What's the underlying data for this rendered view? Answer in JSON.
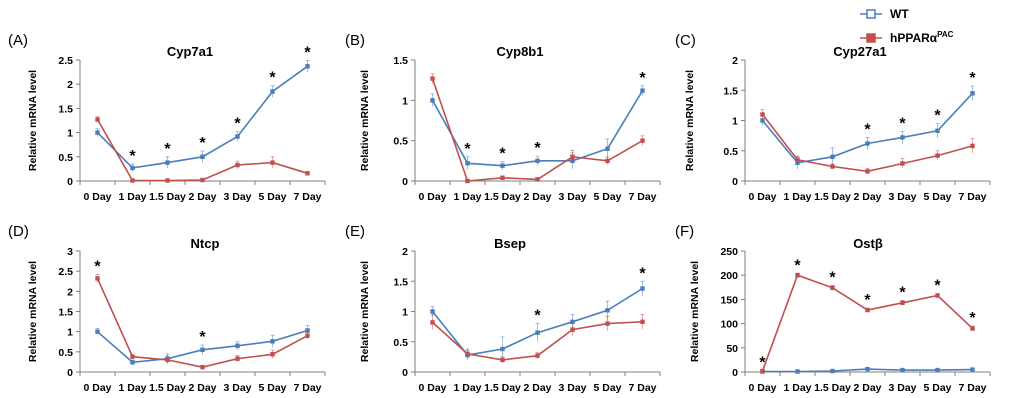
{
  "legend": [
    {
      "name": "WT",
      "color": "#4a7ebb",
      "marker": "square-open"
    },
    {
      "name": "hPPARα",
      "sup": "PAC",
      "color": "#c0504d",
      "marker": "square-filled"
    }
  ],
  "chart_data": [
    {
      "type": "line",
      "panel": "(A)",
      "title": "Cyp7a1",
      "ylabel": "Relative mRNA level",
      "xlabel": "",
      "categories": [
        "0 Day",
        "1 Day",
        "1.5 Day",
        "2 Day",
        "3 Day",
        "5 Day",
        "7 Day"
      ],
      "ylim": [
        0,
        2.5
      ],
      "yticks": [
        "0",
        "0.5",
        "1",
        "1.5",
        "2",
        "2.5"
      ],
      "grid": false,
      "series": [
        {
          "name": "WT",
          "values": [
            1.0,
            0.27,
            0.38,
            0.5,
            0.92,
            1.85,
            2.37
          ],
          "err": [
            0.08,
            0.08,
            0.12,
            0.12,
            0.1,
            0.12,
            0.12
          ]
        },
        {
          "name": "hPPARα",
          "values": [
            1.27,
            0.01,
            0.01,
            0.02,
            0.33,
            0.38,
            0.16
          ],
          "err": [
            0.06,
            0.02,
            0.02,
            0.02,
            0.08,
            0.12,
            0.03
          ]
        }
      ],
      "significant": [
        1,
        2,
        3,
        4,
        5,
        6
      ]
    },
    {
      "type": "line",
      "panel": "(B)",
      "title": "Cyp8b1",
      "ylabel": "Relative mRNA level",
      "xlabel": "",
      "categories": [
        "0 Day",
        "1 Day",
        "1.5 Day",
        "2 Day",
        "3 Day",
        "5 Day",
        "7 Day"
      ],
      "ylim": [
        0,
        1.5
      ],
      "yticks": [
        "0",
        "0.5",
        "1",
        "1.5"
      ],
      "grid": false,
      "series": [
        {
          "name": "WT",
          "values": [
            1.0,
            0.22,
            0.19,
            0.25,
            0.25,
            0.4,
            1.12
          ],
          "err": [
            0.08,
            0.08,
            0.05,
            0.06,
            0.1,
            0.12,
            0.06
          ]
        },
        {
          "name": "hPPARα",
          "values": [
            1.27,
            0.0,
            0.04,
            0.02,
            0.3,
            0.25,
            0.5
          ],
          "err": [
            0.06,
            0.01,
            0.02,
            0.02,
            0.08,
            0.05,
            0.06
          ]
        }
      ],
      "significant": [
        1,
        2,
        3,
        6
      ]
    },
    {
      "type": "line",
      "panel": "(C)",
      "title": "Cyp27a1",
      "ylabel": "Relative mRNA level",
      "xlabel": "",
      "categories": [
        "0 Day",
        "1 Day",
        "1.5 Day",
        "2 Day",
        "3 Day",
        "5 Day",
        "7 Day"
      ],
      "ylim": [
        0,
        2
      ],
      "yticks": [
        "0",
        "0.5",
        "1",
        "1.5",
        "2"
      ],
      "grid": false,
      "series": [
        {
          "name": "WT",
          "values": [
            1.0,
            0.3,
            0.4,
            0.62,
            0.72,
            0.83,
            1.45
          ],
          "err": [
            0.08,
            0.1,
            0.15,
            0.1,
            0.1,
            0.12,
            0.12
          ]
        },
        {
          "name": "hPPARα",
          "values": [
            1.1,
            0.35,
            0.24,
            0.16,
            0.29,
            0.42,
            0.58
          ],
          "err": [
            0.08,
            0.06,
            0.04,
            0.05,
            0.08,
            0.08,
            0.12
          ]
        }
      ],
      "significant": [
        3,
        4,
        5,
        6
      ]
    },
    {
      "type": "line",
      "panel": "(D)",
      "title": "Ntcp",
      "ylabel": "Relative mRNA level",
      "xlabel": "",
      "categories": [
        "0 Day",
        "1 Day",
        "1.5 Day",
        "2 Day",
        "3 Day",
        "5 Day",
        "7 Day"
      ],
      "ylim": [
        0,
        3
      ],
      "yticks": [
        "0",
        "0.5",
        "1",
        "1.5",
        "2",
        "2.5",
        "3"
      ],
      "grid": false,
      "series": [
        {
          "name": "WT",
          "values": [
            1.0,
            0.24,
            0.33,
            0.55,
            0.65,
            0.76,
            1.03
          ],
          "err": [
            0.08,
            0.06,
            0.12,
            0.12,
            0.1,
            0.15,
            0.12
          ]
        },
        {
          "name": "hPPARα",
          "values": [
            2.32,
            0.38,
            0.3,
            0.12,
            0.33,
            0.44,
            0.9
          ],
          "err": [
            0.1,
            0.05,
            0.1,
            0.03,
            0.08,
            0.1,
            0.08
          ]
        }
      ],
      "significant": [
        0,
        3
      ]
    },
    {
      "type": "line",
      "panel": "(E)",
      "title": "Bsep",
      "ylabel": "Relative mRNA level",
      "xlabel": "",
      "categories": [
        "0 Day",
        "1 Day",
        "1.5 Day",
        "2 Day",
        "3 Day",
        "5 Day",
        "7 Day"
      ],
      "ylim": [
        0,
        2
      ],
      "yticks": [
        "0",
        "0.5",
        "1",
        "1.5",
        "2"
      ],
      "grid": false,
      "series": [
        {
          "name": "WT",
          "values": [
            1.0,
            0.28,
            0.38,
            0.65,
            0.83,
            1.02,
            1.38
          ],
          "err": [
            0.08,
            0.08,
            0.2,
            0.15,
            0.12,
            0.15,
            0.12
          ]
        },
        {
          "name": "hPPARα",
          "values": [
            0.82,
            0.3,
            0.2,
            0.27,
            0.7,
            0.8,
            0.83
          ],
          "err": [
            0.12,
            0.08,
            0.05,
            0.05,
            0.1,
            0.12,
            0.12
          ]
        }
      ],
      "significant": [
        3,
        6
      ]
    },
    {
      "type": "line",
      "panel": "(F)",
      "title": "Ostβ",
      "ylabel": "Relative mRNA level",
      "xlabel": "",
      "categories": [
        "0 Day",
        "1 Day",
        "1.5 Day",
        "2 Day",
        "3 Day",
        "5 Day",
        "7 Day"
      ],
      "ylim": [
        0,
        250
      ],
      "yticks": [
        "0",
        "50",
        "100",
        "150",
        "200",
        "250"
      ],
      "grid": false,
      "series": [
        {
          "name": "WT",
          "values": [
            1,
            1,
            2,
            6,
            4,
            4,
            5
          ],
          "err": [
            0.5,
            0.5,
            1,
            1.5,
            1,
            1,
            1
          ]
        },
        {
          "name": "hPPARα",
          "values": [
            2,
            200,
            174,
            128,
            143,
            158,
            90
          ],
          "err": [
            1,
            4,
            5,
            4,
            5,
            4,
            5
          ]
        }
      ],
      "significant": [
        0,
        1,
        2,
        3,
        4,
        5,
        6
      ]
    }
  ]
}
